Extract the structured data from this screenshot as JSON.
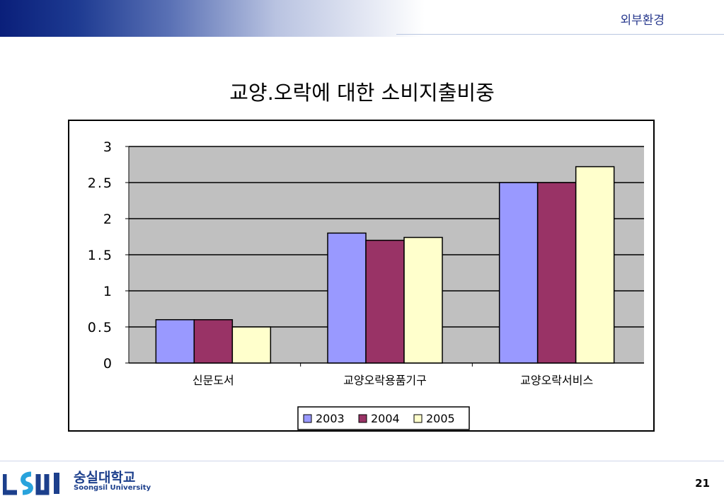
{
  "header": {
    "section_label": "외부환경"
  },
  "slide": {
    "title": "교양.오락에 대한 소비지출비중"
  },
  "chart_data": {
    "type": "bar",
    "title": "",
    "xlabel": "",
    "ylabel": "",
    "categories": [
      "신문도서",
      "교양오락용품기구",
      "교양오락서비스"
    ],
    "series": [
      {
        "name": "2003",
        "values": [
          0.6,
          1.8,
          2.5
        ],
        "color": "#9999ff"
      },
      {
        "name": "2004",
        "values": [
          0.6,
          1.7,
          2.5
        ],
        "color": "#993366"
      },
      {
        "name": "2005",
        "values": [
          0.5,
          1.74,
          2.72
        ],
        "color": "#ffffcc"
      }
    ],
    "ylim": [
      0,
      3
    ],
    "yticks": [
      "0",
      "0.5",
      "1",
      "1.5",
      "2",
      "2.5",
      "3"
    ],
    "grid": true,
    "plot_background": "#c0c0c0",
    "legend_position": "bottom"
  },
  "footer": {
    "logo_korean": "숭실대학교",
    "logo_english": "Soongsil University",
    "page_number": "21"
  }
}
